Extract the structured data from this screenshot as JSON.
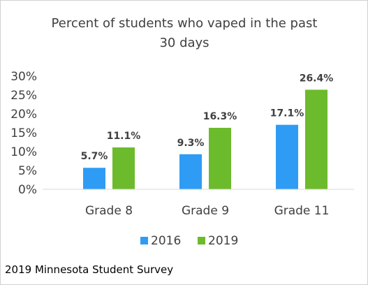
{
  "chart_data": {
    "type": "bar",
    "title_lines": [
      "Percent of students who vaped in the past",
      "30 days"
    ],
    "categories": [
      "Grade 8",
      "Grade 9",
      "Grade 11"
    ],
    "series": [
      {
        "name": "2016",
        "values": [
          5.7,
          9.3,
          17.1
        ],
        "labels": [
          "5.7%",
          "9.3%",
          "17.1%"
        ],
        "color": "#2e9cf4"
      },
      {
        "name": "2019",
        "values": [
          11.1,
          16.3,
          26.4
        ],
        "labels": [
          "11.1%",
          "16.3%",
          "26.4%"
        ],
        "color": "#6cbb2c"
      }
    ],
    "ylim": [
      0,
      30
    ],
    "yticks": [
      0,
      5,
      10,
      15,
      20,
      25,
      30
    ],
    "ytick_labels": [
      "0%",
      "5%",
      "10%",
      "15%",
      "20%",
      "25%",
      "30%"
    ],
    "xlabel": "",
    "ylabel": "",
    "grid": false,
    "legend_position": "bottom"
  },
  "footer": {
    "source": "2019 Minnesota Student Survey"
  }
}
